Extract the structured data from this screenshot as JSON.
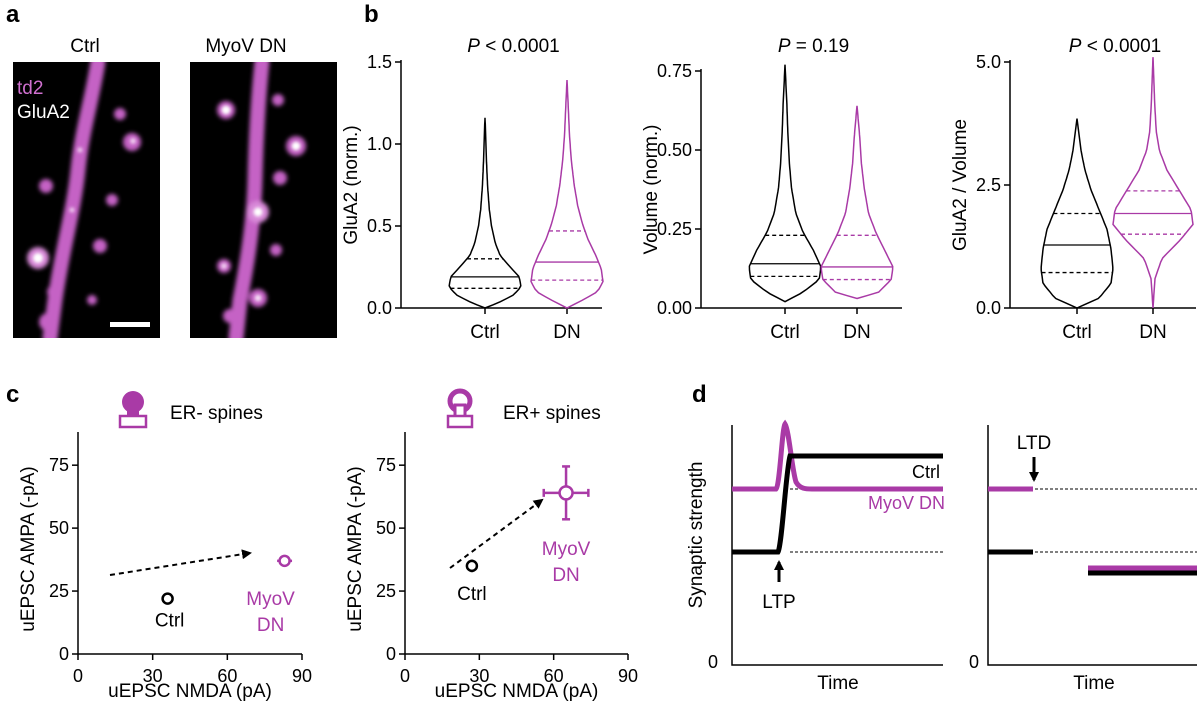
{
  "panels": {
    "a": "a",
    "b": "b",
    "c": "c",
    "d": "d"
  },
  "colors": {
    "magenta": "#a93aa6",
    "black": "#000000",
    "img_bg": "#000000",
    "dendrite": "#c86fc8"
  },
  "panel_a": {
    "ctrl_label": "Ctrl",
    "dn_label": "MyoV DN",
    "channel1": "td2",
    "channel2": "GluA2"
  },
  "chart_data": [
    {
      "type": "violin",
      "title": "P < 0.0001",
      "title_p": "P",
      "title_rest": " < 0.0001",
      "ylabel": "GluA2 (norm.)",
      "ylim": [
        0,
        1.5
      ],
      "yticks": [
        "0.0",
        "0.5",
        "1.0",
        "1.5"
      ],
      "ytick_values": [
        0,
        0.5,
        1.0,
        1.5
      ],
      "categories": [
        "Ctrl",
        "DN"
      ],
      "series": [
        {
          "category": "Ctrl",
          "color": "#000000",
          "min": 0.0,
          "max": 1.16,
          "q1": 0.12,
          "median": 0.19,
          "q3": 0.3,
          "profile": [
            [
              0.0,
              0.0
            ],
            [
              0.03,
              0.35
            ],
            [
              0.08,
              0.8
            ],
            [
              0.13,
              1.0
            ],
            [
              0.19,
              0.95
            ],
            [
              0.25,
              0.7
            ],
            [
              0.32,
              0.42
            ],
            [
              0.4,
              0.28
            ],
            [
              0.5,
              0.18
            ],
            [
              0.6,
              0.12
            ],
            [
              0.75,
              0.07
            ],
            [
              0.9,
              0.04
            ],
            [
              1.05,
              0.02
            ],
            [
              1.16,
              0.0
            ]
          ]
        },
        {
          "category": "DN",
          "color": "#a93aa6",
          "min": 0.0,
          "max": 1.39,
          "q1": 0.17,
          "median": 0.28,
          "q3": 0.47,
          "profile": [
            [
              0.0,
              0.0
            ],
            [
              0.05,
              0.45
            ],
            [
              0.1,
              0.85
            ],
            [
              0.16,
              1.0
            ],
            [
              0.24,
              0.95
            ],
            [
              0.32,
              0.8
            ],
            [
              0.42,
              0.58
            ],
            [
              0.52,
              0.42
            ],
            [
              0.62,
              0.3
            ],
            [
              0.75,
              0.2
            ],
            [
              0.9,
              0.12
            ],
            [
              1.05,
              0.07
            ],
            [
              1.2,
              0.04
            ],
            [
              1.39,
              0.0
            ]
          ]
        }
      ]
    },
    {
      "type": "violin",
      "title": "P = 0.19",
      "title_p": "P",
      "title_rest": " = 0.19",
      "ylabel": "Volume (norm.)",
      "ylim": [
        0,
        0.75
      ],
      "yticks": [
        "0.00",
        "0.25",
        "0.50",
        "0.75"
      ],
      "ytick_values": [
        0,
        0.25,
        0.5,
        0.75
      ],
      "categories": [
        "Ctrl",
        "DN"
      ],
      "series": [
        {
          "category": "Ctrl",
          "color": "#000000",
          "min": 0.02,
          "max": 0.77,
          "q1": 0.1,
          "median": 0.14,
          "q3": 0.23,
          "profile": [
            [
              0.02,
              0.0
            ],
            [
              0.05,
              0.5
            ],
            [
              0.09,
              0.95
            ],
            [
              0.13,
              1.0
            ],
            [
              0.18,
              0.8
            ],
            [
              0.24,
              0.5
            ],
            [
              0.3,
              0.3
            ],
            [
              0.38,
              0.18
            ],
            [
              0.46,
              0.12
            ],
            [
              0.55,
              0.08
            ],
            [
              0.65,
              0.05
            ],
            [
              0.77,
              0.0
            ]
          ]
        },
        {
          "category": "DN",
          "color": "#a93aa6",
          "min": 0.03,
          "max": 0.64,
          "q1": 0.09,
          "median": 0.13,
          "q3": 0.23,
          "profile": [
            [
              0.03,
              0.0
            ],
            [
              0.05,
              0.6
            ],
            [
              0.09,
              0.95
            ],
            [
              0.13,
              1.0
            ],
            [
              0.18,
              0.78
            ],
            [
              0.24,
              0.52
            ],
            [
              0.3,
              0.32
            ],
            [
              0.38,
              0.2
            ],
            [
              0.46,
              0.12
            ],
            [
              0.55,
              0.07
            ],
            [
              0.64,
              0.0
            ]
          ]
        }
      ]
    },
    {
      "type": "violin",
      "title": "P < 0.0001",
      "title_p": "P",
      "title_rest": " < 0.0001",
      "ylabel": "GluA2 / Volume",
      "ylim": [
        0,
        5.0
      ],
      "yticks": [
        "0.0",
        "2.5",
        "5.0"
      ],
      "ytick_values": [
        0,
        2.5,
        5.0
      ],
      "categories": [
        "Ctrl",
        "DN"
      ],
      "series": [
        {
          "category": "Ctrl",
          "color": "#000000",
          "min": 0.0,
          "max": 3.85,
          "q1": 0.72,
          "median": 1.28,
          "q3": 1.92,
          "profile": [
            [
              0.0,
              0.0
            ],
            [
              0.2,
              0.55
            ],
            [
              0.5,
              0.85
            ],
            [
              0.8,
              0.9
            ],
            [
              1.2,
              0.85
            ],
            [
              1.6,
              0.75
            ],
            [
              2.0,
              0.55
            ],
            [
              2.4,
              0.35
            ],
            [
              2.8,
              0.2
            ],
            [
              3.2,
              0.1
            ],
            [
              3.6,
              0.04
            ],
            [
              3.85,
              0.0
            ]
          ]
        },
        {
          "category": "DN",
          "color": "#a93aa6",
          "min": 0.0,
          "max": 5.1,
          "q1": 1.5,
          "median": 1.92,
          "q3": 2.38,
          "profile": [
            [
              0.0,
              0.0
            ],
            [
              0.6,
              0.05
            ],
            [
              1.0,
              0.22
            ],
            [
              1.4,
              0.7
            ],
            [
              1.7,
              1.0
            ],
            [
              2.0,
              0.95
            ],
            [
              2.4,
              0.65
            ],
            [
              2.8,
              0.35
            ],
            [
              3.2,
              0.16
            ],
            [
              3.6,
              0.08
            ],
            [
              4.2,
              0.04
            ],
            [
              5.1,
              0.0
            ]
          ]
        }
      ]
    },
    {
      "type": "scatter",
      "title": "ER- spines",
      "xlabel": "uEPSC NMDA (pA)",
      "ylabel": "uEPSC AMPA (-pA)",
      "xlim": [
        0,
        90
      ],
      "ylim": [
        0,
        85
      ],
      "xticks": [
        "0",
        "30",
        "60",
        "90"
      ],
      "xtick_values": [
        0,
        30,
        60,
        90
      ],
      "yticks": [
        "0",
        "25",
        "50",
        "75"
      ],
      "ytick_values": [
        0,
        25,
        50,
        75
      ],
      "points": [
        {
          "label": "Ctrl",
          "x": 36,
          "y": 22,
          "xerr": 2,
          "yerr": 1.5,
          "color": "#000000"
        },
        {
          "label": "MyoV DN",
          "label_lines": [
            "MyoV",
            "DN"
          ],
          "x": 83,
          "y": 37,
          "xerr": 3,
          "yerr": 1.5,
          "color": "#a93aa6"
        }
      ]
    },
    {
      "type": "scatter",
      "title": "ER+ spines",
      "xlabel": "uEPSC NMDA (pA)",
      "ylabel": "uEPSC AMPA (-pA)",
      "xlim": [
        0,
        90
      ],
      "ylim": [
        0,
        85
      ],
      "xticks": [
        "0",
        "30",
        "60",
        "90"
      ],
      "xtick_values": [
        0,
        30,
        60,
        90
      ],
      "yticks": [
        "0",
        "25",
        "50",
        "75"
      ],
      "ytick_values": [
        0,
        25,
        50,
        75
      ],
      "points": [
        {
          "label": "Ctrl",
          "x": 27,
          "y": 35,
          "xerr": 2,
          "yerr": 2.5,
          "color": "#000000"
        },
        {
          "label": "MyoV DN",
          "label_lines": [
            "MyoV",
            "DN"
          ],
          "x": 65,
          "y": 64,
          "xerr": 9,
          "yerr": 10.5,
          "color": "#a93aa6"
        }
      ]
    }
  ],
  "panel_d": {
    "ylabel": "Synaptic strength",
    "zero": "0",
    "xlabel_left": "Time",
    "xlabel_right": "Time",
    "ltp": "LTP",
    "ltd": "LTD",
    "legend_ctrl": "Ctrl",
    "legend_dn": "MyoV DN"
  }
}
